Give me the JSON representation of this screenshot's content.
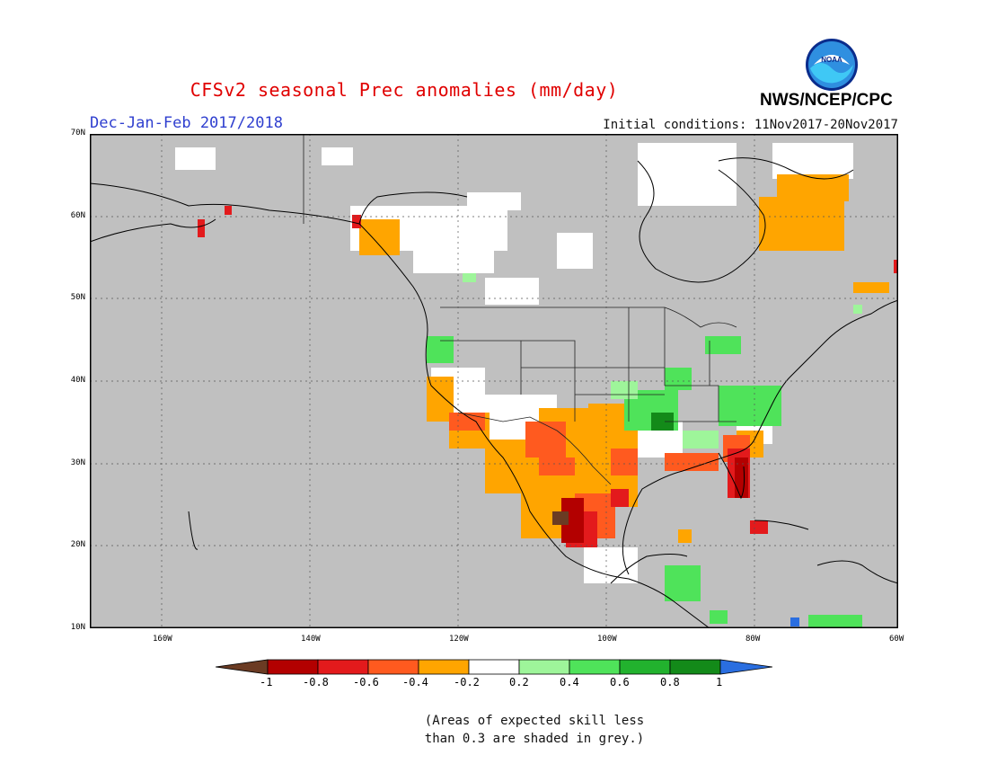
{
  "title": "CFSv2 seasonal Prec anomalies (mm/day)",
  "season": "Dec-Jan-Feb 2017/2018",
  "initial_conditions": "Initial conditions: 11Nov2017-20Nov2017",
  "agency": "NWS/NCEP/CPC",
  "logo_text": "NOAA",
  "lat_labels": [
    "70N",
    "60N",
    "50N",
    "40N",
    "30N",
    "20N",
    "10N"
  ],
  "lon_labels": [
    "160W",
    "140W",
    "120W",
    "100W",
    "80W",
    "60W"
  ],
  "colorbar": {
    "labels": [
      "-1",
      "-0.8",
      "-0.6",
      "-0.4",
      "-0.2",
      "0.2",
      "0.4",
      "0.6",
      "0.8",
      "1"
    ],
    "colors": [
      "#6b3b23",
      "#b30000",
      "#e31a1c",
      "#ff5a1f",
      "#ffa500",
      "#ffffff",
      "#9ef59a",
      "#4fe35a",
      "#22b22e",
      "#138a19",
      "#2a6ee0"
    ]
  },
  "colors": {
    "skill_grey": "#c0c0c0",
    "title_red": "#e00000",
    "season_blue": "#2f3fcf"
  },
  "note": {
    "line1": "(Areas of expected skill less",
    "line2": "than 0.3 are shaded in grey.)"
  }
}
